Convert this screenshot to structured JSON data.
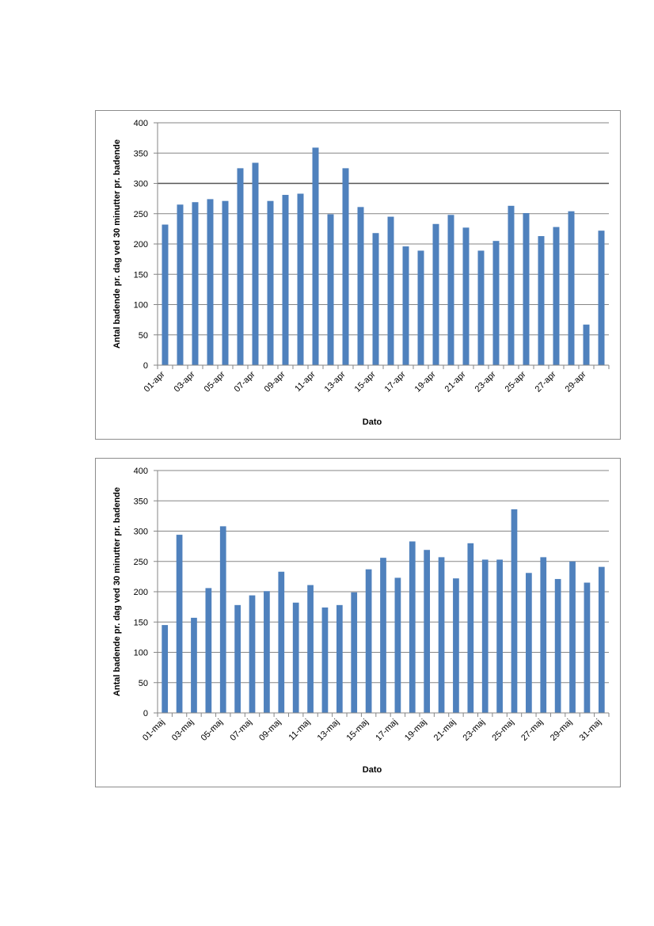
{
  "colors": {
    "bar": "#4f81bd",
    "grid": "#868686",
    "axis": "#868686",
    "frame": "#8c8c8c"
  },
  "chart_data": [
    {
      "type": "bar",
      "xlabel": "Dato",
      "ylabel": "Antal badende pr. dag ved 30 minutter pr. badende",
      "ylim": [
        0,
        400
      ],
      "yticks": [
        "0",
        "50",
        "100",
        "150",
        "200",
        "250",
        "300",
        "350",
        "400"
      ],
      "grid": true,
      "reference_line": 300,
      "categories": [
        "01-apr",
        "02-apr",
        "03-apr",
        "04-apr",
        "05-apr",
        "06-apr",
        "07-apr",
        "08-apr",
        "09-apr",
        "10-apr",
        "11-apr",
        "12-apr",
        "13-apr",
        "14-apr",
        "15-apr",
        "16-apr",
        "17-apr",
        "18-apr",
        "19-apr",
        "20-apr",
        "21-apr",
        "22-apr",
        "23-apr",
        "24-apr",
        "25-apr",
        "26-apr",
        "27-apr",
        "28-apr",
        "29-apr",
        "30-apr"
      ],
      "tick_labels": [
        "01-apr",
        "03-apr",
        "05-apr",
        "07-apr",
        "09-apr",
        "11-apr",
        "13-apr",
        "15-apr",
        "17-apr",
        "19-apr",
        "21-apr",
        "23-apr",
        "25-apr",
        "27-apr",
        "29-apr"
      ],
      "values": [
        232,
        265,
        269,
        274,
        271,
        325,
        334,
        271,
        281,
        283,
        359,
        249,
        325,
        261,
        218,
        245,
        196,
        189,
        233,
        248,
        227,
        189,
        205,
        263,
        251,
        213,
        228,
        254,
        67,
        222
      ]
    },
    {
      "type": "bar",
      "xlabel": "Dato",
      "ylabel": "Antal badende pr. dag ved 30 minutter pr. badende",
      "ylim": [
        0,
        400
      ],
      "yticks": [
        "0",
        "50",
        "100",
        "150",
        "200",
        "250",
        "300",
        "350",
        "400"
      ],
      "grid": true,
      "categories": [
        "01-maj",
        "02-maj",
        "03-maj",
        "04-maj",
        "05-maj",
        "06-maj",
        "07-maj",
        "08-maj",
        "09-maj",
        "10-maj",
        "11-maj",
        "12-maj",
        "13-maj",
        "14-maj",
        "15-maj",
        "16-maj",
        "17-maj",
        "18-maj",
        "19-maj",
        "20-maj",
        "21-maj",
        "22-maj",
        "23-maj",
        "24-maj",
        "25-maj",
        "26-maj",
        "27-maj",
        "28-maj",
        "29-maj",
        "30-maj",
        "31-maj"
      ],
      "tick_labels": [
        "01-maj",
        "03-maj",
        "05-maj",
        "07-maj",
        "09-maj",
        "11-maj",
        "13-maj",
        "15-maj",
        "17-maj",
        "19-maj",
        "21-maj",
        "23-maj",
        "25-maj",
        "27-maj",
        "29-maj",
        "31-maj"
      ],
      "values": [
        145,
        294,
        157,
        206,
        308,
        178,
        194,
        201,
        233,
        182,
        211,
        174,
        178,
        199,
        237,
        256,
        223,
        283,
        269,
        257,
        222,
        280,
        253,
        253,
        336,
        231,
        257,
        221,
        250,
        215,
        241
      ]
    }
  ]
}
